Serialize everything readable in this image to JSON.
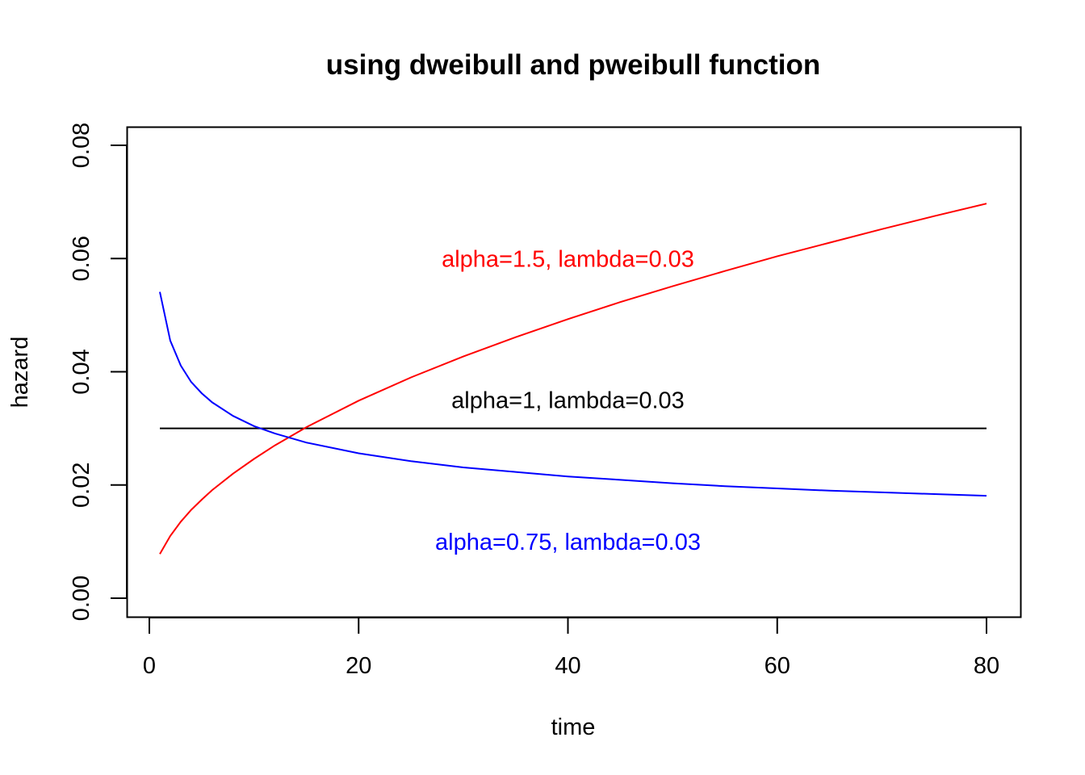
{
  "chart_data": {
    "type": "line",
    "title": "using dweibull and pweibull function",
    "xlabel": "time",
    "ylabel": "hazard",
    "xlim": [
      0,
      80
    ],
    "ylim": [
      0,
      0.08
    ],
    "x_ticks": [
      {
        "value": 0,
        "label": "0"
      },
      {
        "value": 20,
        "label": "20"
      },
      {
        "value": 40,
        "label": "40"
      },
      {
        "value": 60,
        "label": "60"
      },
      {
        "value": 80,
        "label": "80"
      }
    ],
    "y_ticks": [
      {
        "value": 0,
        "label": "0.00"
      },
      {
        "value": 0.02,
        "label": "0.02"
      },
      {
        "value": 0.04,
        "label": "0.04"
      },
      {
        "value": 0.06,
        "label": "0.06"
      },
      {
        "value": 0.08,
        "label": "0.08"
      }
    ],
    "grid": false,
    "series": [
      {
        "color": "#000000",
        "x": [
          1,
          2,
          3,
          4,
          5,
          6,
          8,
          10,
          12,
          15,
          20,
          25,
          30,
          35,
          40,
          45,
          50,
          55,
          60,
          65,
          70,
          75,
          80
        ],
        "values": [
          0.03,
          0.03,
          0.03,
          0.03,
          0.03,
          0.03,
          0.03,
          0.03,
          0.03,
          0.03,
          0.03,
          0.03,
          0.03,
          0.03,
          0.03,
          0.03,
          0.03,
          0.03,
          0.03,
          0.03,
          0.03,
          0.03,
          0.03
        ]
      },
      {
        "color": "#ff0000",
        "x": [
          1,
          2,
          3,
          4,
          5,
          6,
          8,
          10,
          12,
          15,
          20,
          25,
          30,
          35,
          40,
          45,
          50,
          55,
          60,
          65,
          70,
          75,
          80
        ],
        "values": [
          0.0078,
          0.011,
          0.0135,
          0.0156,
          0.0174,
          0.0191,
          0.022,
          0.0246,
          0.027,
          0.0302,
          0.0349,
          0.039,
          0.0427,
          0.0461,
          0.0493,
          0.0523,
          0.0551,
          0.0578,
          0.0604,
          0.0628,
          0.0652,
          0.0675,
          0.0697
        ]
      },
      {
        "color": "#0000ff",
        "x": [
          1,
          2,
          3,
          4,
          5,
          6,
          8,
          10,
          12,
          15,
          20,
          25,
          30,
          35,
          40,
          45,
          50,
          55,
          60,
          65,
          70,
          75,
          80
        ],
        "values": [
          0.0541,
          0.0455,
          0.0411,
          0.0382,
          0.0362,
          0.0346,
          0.0322,
          0.0304,
          0.0291,
          0.0275,
          0.0256,
          0.0242,
          0.0231,
          0.0223,
          0.0215,
          0.0209,
          0.0203,
          0.0198,
          0.0194,
          0.019,
          0.0187,
          0.0184,
          0.0181
        ]
      }
    ],
    "annotations": [
      {
        "text": "alpha=1.5, lambda=0.03",
        "x": 40,
        "y": 0.06,
        "color": "#ff0000"
      },
      {
        "text": "alpha=1, lambda=0.03",
        "x": 40,
        "y": 0.035,
        "color": "#000000"
      },
      {
        "text": "alpha=0.75, lambda=0.03",
        "x": 40,
        "y": 0.01,
        "color": "#0000ff"
      }
    ]
  }
}
